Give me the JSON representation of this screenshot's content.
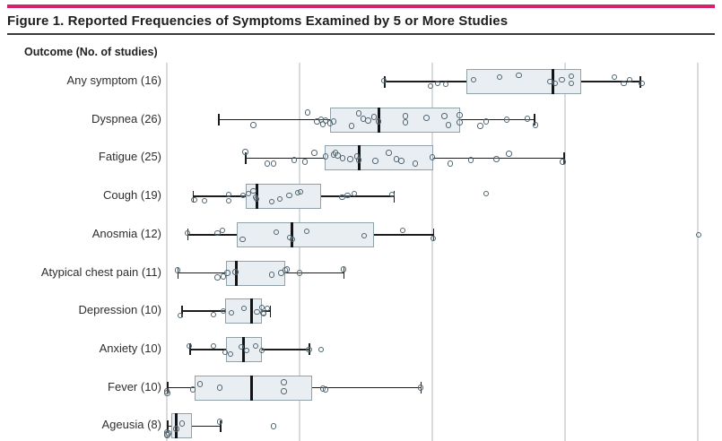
{
  "figure": {
    "title": "Figure 1. Reported Frequencies of Symptoms Examined by 5 or More Studies",
    "column_header": "Outcome (No. of studies)",
    "accent_color": "#d5226d"
  },
  "chart_data": {
    "type": "boxplot-horizontal-with-points",
    "title": "Figure 1. Reported Frequencies of Symptoms Examined by 5 or More Studies",
    "xlabel": "",
    "ylabel": "Outcome (No. of studies)",
    "x_axis": {
      "min": 0,
      "max": 83,
      "gridline_values": [
        0,
        20,
        40,
        60,
        80
      ],
      "grid": true,
      "tick_labels_visible": false,
      "axis_cropped_at_bottom": true
    },
    "value_unit": "percent frequency (estimated from gridlines)",
    "rows": [
      {
        "label": "Any symptom (16)",
        "outcome": "Any symptom",
        "n_studies": 16,
        "whisker_low": 32.7,
        "q1": 45.1,
        "median": 58.2,
        "q3": 62.4,
        "whisker_high": 71.2,
        "points": [
          [
            32.7,
            -1
          ],
          [
            39.7,
            5
          ],
          [
            40.8,
            2
          ],
          [
            42.0,
            3
          ],
          [
            46.2,
            -2
          ],
          [
            50.1,
            -5
          ],
          [
            53.0,
            -7
          ],
          [
            57.7,
            0
          ],
          [
            58.5,
            2
          ],
          [
            59.5,
            -2
          ],
          [
            60.9,
            -6
          ],
          [
            60.9,
            2
          ],
          [
            67.4,
            -5
          ],
          [
            68.8,
            2
          ],
          [
            69.7,
            -2
          ],
          [
            71.5,
            2
          ]
        ]
      },
      {
        "label": "Dyspnea (26)",
        "outcome": "Dyspnea",
        "n_studies": 26,
        "whisker_low": 7.7,
        "q1": 24.6,
        "median": 31.9,
        "q3": 44.1,
        "whisker_high": 55.3,
        "points": [
          [
            13.0,
            6
          ],
          [
            21.2,
            -8
          ],
          [
            22.6,
            2
          ],
          [
            23.2,
            0
          ],
          [
            23.5,
            5
          ],
          [
            23.9,
            1
          ],
          [
            24.6,
            4
          ],
          [
            25.1,
            2
          ],
          [
            27.8,
            7
          ],
          [
            28.9,
            -7
          ],
          [
            29.6,
            -1
          ],
          [
            30.3,
            1
          ],
          [
            31.2,
            -3
          ],
          [
            31.9,
            2
          ],
          [
            35.9,
            -4
          ],
          [
            35.9,
            3
          ],
          [
            39.1,
            -2
          ],
          [
            41.8,
            -4
          ],
          [
            42.4,
            6
          ],
          [
            44.1,
            -5
          ],
          [
            44.1,
            3
          ],
          [
            47.2,
            7
          ],
          [
            48.1,
            2
          ],
          [
            51.2,
            0
          ],
          [
            54.3,
            -1
          ],
          [
            55.5,
            6
          ]
        ]
      },
      {
        "label": "Fatigue (25)",
        "outcome": "Fatigue",
        "n_studies": 25,
        "whisker_low": 11.8,
        "q1": 23.8,
        "median": 28.9,
        "q3": 40.1,
        "whisker_high": 59.7,
        "points": [
          [
            11.8,
            -7
          ],
          [
            15.1,
            6
          ],
          [
            16.1,
            6
          ],
          [
            19.2,
            2
          ],
          [
            20.8,
            4
          ],
          [
            22.2,
            -6
          ],
          [
            23.9,
            -2
          ],
          [
            25.1,
            -4
          ],
          [
            25.4,
            -6
          ],
          [
            25.7,
            -3
          ],
          [
            26.5,
            0
          ],
          [
            27.6,
            1
          ],
          [
            28.6,
            -2
          ],
          [
            28.9,
            2
          ],
          [
            31.4,
            3
          ],
          [
            33.4,
            -6
          ],
          [
            34.6,
            1
          ],
          [
            35.3,
            3
          ],
          [
            37.4,
            6
          ],
          [
            40.0,
            -1
          ],
          [
            42.7,
            6
          ],
          [
            45.8,
            2
          ],
          [
            49.6,
            1
          ],
          [
            51.5,
            -5
          ],
          [
            59.6,
            4
          ]
        ]
      },
      {
        "label": "Cough (19)",
        "outcome": "Cough",
        "n_studies": 19,
        "whisker_low": 3.9,
        "q1": 11.9,
        "median": 13.6,
        "q3": 23.2,
        "whisker_high": 34.1,
        "points": [
          [
            4.1,
            4
          ],
          [
            5.7,
            5
          ],
          [
            9.3,
            -2
          ],
          [
            9.3,
            5
          ],
          [
            11.5,
            -1
          ],
          [
            12.3,
            -3
          ],
          [
            13.0,
            -6
          ],
          [
            13.4,
            1
          ],
          [
            13.5,
            3
          ],
          [
            15.8,
            6
          ],
          [
            17.0,
            3
          ],
          [
            18.4,
            -1
          ],
          [
            19.7,
            -4
          ],
          [
            20.1,
            -5
          ],
          [
            26.4,
            1
          ],
          [
            27.2,
            -1
          ],
          [
            28.2,
            -3
          ],
          [
            33.9,
            -2
          ],
          [
            48.1,
            -3
          ]
        ]
      },
      {
        "label": "Anosmia (12)",
        "outcome": "Anosmia",
        "n_studies": 12,
        "whisker_low": 3.1,
        "q1": 10.5,
        "median": 18.8,
        "q3": 31.2,
        "whisker_high": 40.1,
        "points": [
          [
            3.1,
            -2
          ],
          [
            7.6,
            -2
          ],
          [
            8.4,
            -5
          ],
          [
            11.4,
            5
          ],
          [
            16.5,
            -3
          ],
          [
            18.5,
            3
          ],
          [
            18.9,
            5
          ],
          [
            21.1,
            -4
          ],
          [
            29.7,
            1
          ],
          [
            35.5,
            -5
          ],
          [
            40.1,
            4
          ],
          [
            80.1,
            0
          ]
        ]
      },
      {
        "label": "Atypical chest pain (11)",
        "outcome": "Atypical chest pain",
        "n_studies": 11,
        "whisker_low": 1.6,
        "q1": 8.9,
        "median": 10.5,
        "q3": 17.8,
        "whisker_high": 26.6,
        "points": [
          [
            1.6,
            -3
          ],
          [
            7.6,
            5
          ],
          [
            8.5,
            4
          ],
          [
            9.1,
            0
          ],
          [
            10.3,
            -1
          ],
          [
            15.8,
            2
          ],
          [
            17.2,
            0
          ],
          [
            17.8,
            -3
          ],
          [
            18.1,
            -4
          ],
          [
            20.0,
            0
          ],
          [
            26.6,
            -4
          ]
        ]
      },
      {
        "label": "Depression (10)",
        "outcome": "Depression",
        "n_studies": 10,
        "whisker_low": 2.2,
        "q1": 8.8,
        "median": 12.8,
        "q3": 14.3,
        "whisker_high": 15.5,
        "points": [
          [
            2.0,
            5
          ],
          [
            7.0,
            4
          ],
          [
            8.5,
            0
          ],
          [
            9.7,
            2
          ],
          [
            11.6,
            -3
          ],
          [
            13.6,
            1
          ],
          [
            14.3,
            -4
          ],
          [
            14.5,
            2
          ],
          [
            14.6,
            3
          ],
          [
            15.1,
            -3
          ]
        ]
      },
      {
        "label": "Anxiety (10)",
        "outcome": "Anxiety",
        "n_studies": 10,
        "whisker_low": 3.4,
        "q1": 8.9,
        "median": 11.6,
        "q3": 14.3,
        "whisker_high": 21.4,
        "points": [
          [
            3.4,
            -4
          ],
          [
            7.0,
            -4
          ],
          [
            8.8,
            3
          ],
          [
            9.6,
            5
          ],
          [
            11.2,
            -3
          ],
          [
            12.0,
            1
          ],
          [
            13.4,
            -4
          ],
          [
            14.3,
            1
          ],
          [
            21.4,
            0
          ],
          [
            23.2,
            0
          ]
        ]
      },
      {
        "label": "Fever (10)",
        "outcome": "Fever",
        "n_studies": 10,
        "whisker_low": 0.0,
        "q1": 4.2,
        "median": 12.8,
        "q3": 21.9,
        "whisker_high": 38.2,
        "points": [
          [
            0.0,
            4
          ],
          [
            0.1,
            6
          ],
          [
            3.9,
            2
          ],
          [
            5.0,
            -4
          ],
          [
            8.0,
            0
          ],
          [
            17.6,
            -6
          ],
          [
            17.6,
            4
          ],
          [
            23.5,
            1
          ],
          [
            23.9,
            2
          ],
          [
            38.2,
            0
          ]
        ]
      },
      {
        "label": "Ageusia (8)",
        "outcome": "Ageusia",
        "n_studies": 8,
        "whisker_low": 0.0,
        "q1": 0.7,
        "median": 1.4,
        "q3": 3.8,
        "whisker_high": 8.0,
        "points": [
          [
            0.0,
            7
          ],
          [
            0.0,
            9
          ],
          [
            0.3,
            8
          ],
          [
            1.4,
            3
          ],
          [
            2.3,
            -3
          ],
          [
            8.0,
            -5
          ],
          [
            16.1,
            0
          ],
          [
            0.1,
            10
          ]
        ]
      }
    ]
  }
}
